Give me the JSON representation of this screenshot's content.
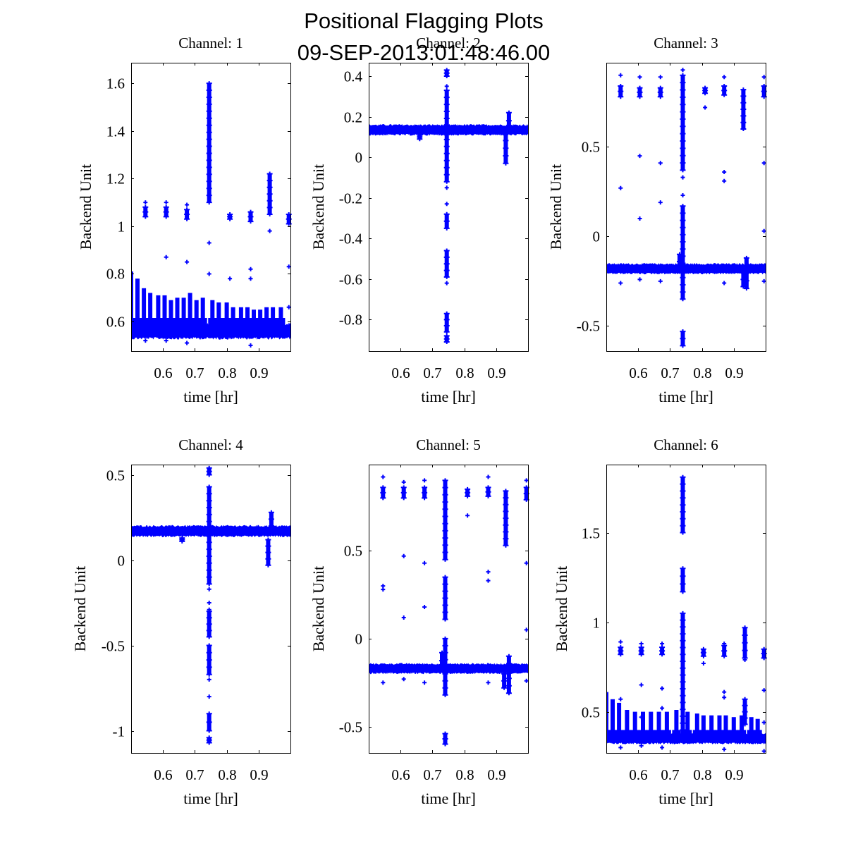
{
  "figure": {
    "title_line1": "Positional Flagging Plots",
    "title_line2": "09-SEP-2013:01:48:46.00"
  },
  "colors": {
    "marker": "#0000ff",
    "axes": "#000000",
    "background": "#ffffff"
  },
  "chart_data": [
    {
      "type": "scatter",
      "title": "Channel: 1",
      "xlabel": "time [hr]",
      "ylabel": "Backend Unit",
      "xlim": [
        0.5,
        1.0
      ],
      "ylim": [
        0.476,
        1.686
      ],
      "xticks": [
        0.6,
        0.7,
        0.8,
        0.9
      ],
      "xtick_labels": [
        "0.6",
        "0.7",
        "0.8",
        "0.9"
      ],
      "yticks": [
        0.6,
        0.8,
        1.0,
        1.2,
        1.4,
        1.6
      ],
      "ytick_labels": [
        "0.6",
        "0.8",
        "1",
        "1.2",
        "1.4",
        "1.6"
      ],
      "marker": "+",
      "baseline": {
        "center": 0.56,
        "halfwidth": 0.025
      },
      "comb_spikes": {
        "x": [
          0.5,
          0.52,
          0.54,
          0.56,
          0.585,
          0.605,
          0.625,
          0.645,
          0.665,
          0.685,
          0.705,
          0.725,
          0.755,
          0.775,
          0.8,
          0.82,
          0.845,
          0.865,
          0.885,
          0.905,
          0.925,
          0.945,
          0.97
        ],
        "top": [
          0.81,
          0.78,
          0.74,
          0.72,
          0.71,
          0.71,
          0.69,
          0.7,
          0.7,
          0.72,
          0.69,
          0.7,
          0.69,
          0.68,
          0.68,
          0.66,
          0.66,
          0.66,
          0.65,
          0.65,
          0.66,
          0.66,
          0.66
        ]
      },
      "clusters": [
        {
          "x": 0.545,
          "y": [
            1.04,
            1.08
          ]
        },
        {
          "x": 0.61,
          "y": [
            1.04,
            1.08
          ]
        },
        {
          "x": 0.675,
          "y": [
            1.03,
            1.07
          ]
        },
        {
          "x": 0.745,
          "y": [
            1.1,
            1.6
          ]
        },
        {
          "x": 0.81,
          "y": [
            1.03,
            1.05
          ]
        },
        {
          "x": 0.875,
          "y": [
            1.02,
            1.06
          ]
        },
        {
          "x": 0.935,
          "y": [
            1.05,
            1.22
          ]
        },
        {
          "x": 0.995,
          "y": [
            1.01,
            1.05
          ]
        }
      ],
      "outliers": [
        [
          0.545,
          1.1
        ],
        [
          0.61,
          1.1
        ],
        [
          0.61,
          0.87
        ],
        [
          0.675,
          0.85
        ],
        [
          0.675,
          1.09
        ],
        [
          0.745,
          0.93
        ],
        [
          0.745,
          0.8
        ],
        [
          0.81,
          0.78
        ],
        [
          0.875,
          0.82
        ],
        [
          0.875,
          0.78
        ],
        [
          0.935,
          0.98
        ],
        [
          0.995,
          0.83
        ],
        [
          0.995,
          0.66
        ],
        [
          0.545,
          0.52
        ],
        [
          0.61,
          0.52
        ],
        [
          0.675,
          0.51
        ],
        [
          0.875,
          0.5
        ]
      ]
    },
    {
      "type": "scatter",
      "title": "Channel: 2",
      "xlabel": "time [hr]",
      "ylabel": "Backend Unit",
      "xlim": [
        0.5,
        1.0
      ],
      "ylim": [
        -0.955,
        0.466
      ],
      "xticks": [
        0.6,
        0.7,
        0.8,
        0.9
      ],
      "xtick_labels": [
        "0.6",
        "0.7",
        "0.8",
        "0.9"
      ],
      "yticks": [
        -0.8,
        -0.6,
        -0.4,
        -0.2,
        0,
        0.2,
        0.4
      ],
      "ytick_labels": [
        "-0.8",
        "-0.6",
        "-0.4",
        "-0.2",
        "0",
        "0.2",
        "0.4"
      ],
      "marker": "+",
      "baseline": {
        "center": 0.135,
        "halfwidth": 0.02
      },
      "comb_spikes": {
        "x": [],
        "top": []
      },
      "clusters": [
        {
          "x": 0.745,
          "y": [
            -0.12,
            0.33
          ]
        },
        {
          "x": 0.745,
          "y": [
            0.4,
            0.43
          ]
        },
        {
          "x": 0.745,
          "y": [
            -0.35,
            -0.28
          ]
        },
        {
          "x": 0.745,
          "y": [
            -0.59,
            -0.46
          ]
        },
        {
          "x": 0.745,
          "y": [
            -0.86,
            -0.77
          ]
        },
        {
          "x": 0.745,
          "y": [
            -0.91,
            -0.88
          ]
        },
        {
          "x": 0.66,
          "y": [
            0.09,
            0.11
          ]
        },
        {
          "x": 0.94,
          "y": [
            0.14,
            0.22
          ]
        },
        {
          "x": 0.93,
          "y": [
            -0.03,
            0.12
          ]
        }
      ],
      "outliers": [
        [
          0.745,
          0.35
        ],
        [
          0.745,
          -0.15
        ],
        [
          0.745,
          -0.23
        ],
        [
          0.745,
          -0.62
        ]
      ]
    },
    {
      "type": "scatter",
      "title": "Channel: 3",
      "xlabel": "time [hr]",
      "ylabel": "Backend Unit",
      "xlim": [
        0.5,
        1.0
      ],
      "ylim": [
        -0.64,
        0.97
      ],
      "xticks": [
        0.6,
        0.7,
        0.8,
        0.9
      ],
      "xtick_labels": [
        "0.6",
        "0.7",
        "0.8",
        "0.9"
      ],
      "yticks": [
        -0.5,
        0,
        0.5
      ],
      "ytick_labels": [
        "-0.5",
        "0",
        "0.5"
      ],
      "marker": "+",
      "baseline": {
        "center": -0.18,
        "halfwidth": 0.022
      },
      "comb_spikes": {
        "x": [],
        "top": []
      },
      "clusters": [
        {
          "x": 0.545,
          "y": [
            0.78,
            0.84
          ]
        },
        {
          "x": 0.605,
          "y": [
            0.78,
            0.83
          ]
        },
        {
          "x": 0.67,
          "y": [
            0.78,
            0.83
          ]
        },
        {
          "x": 0.74,
          "y": [
            0.37,
            0.9
          ]
        },
        {
          "x": 0.74,
          "y": [
            -0.35,
            0.17
          ]
        },
        {
          "x": 0.74,
          "y": [
            -0.61,
            -0.53
          ]
        },
        {
          "x": 0.81,
          "y": [
            0.8,
            0.83
          ]
        },
        {
          "x": 0.87,
          "y": [
            0.79,
            0.84
          ]
        },
        {
          "x": 0.93,
          "y": [
            0.6,
            0.82
          ]
        },
        {
          "x": 0.995,
          "y": [
            0.78,
            0.84
          ]
        },
        {
          "x": 0.93,
          "y": [
            -0.28,
            -0.2
          ]
        },
        {
          "x": 0.94,
          "y": [
            -0.29,
            -0.12
          ]
        },
        {
          "x": 0.73,
          "y": [
            -0.18,
            -0.1
          ]
        }
      ],
      "outliers": [
        [
          0.545,
          0.9
        ],
        [
          0.545,
          0.27
        ],
        [
          0.605,
          0.89
        ],
        [
          0.605,
          0.45
        ],
        [
          0.605,
          0.1
        ],
        [
          0.67,
          0.89
        ],
        [
          0.67,
          0.41
        ],
        [
          0.67,
          0.19
        ],
        [
          0.74,
          0.93
        ],
        [
          0.74,
          0.33
        ],
        [
          0.74,
          0.23
        ],
        [
          0.81,
          0.72
        ],
        [
          0.87,
          0.89
        ],
        [
          0.87,
          0.36
        ],
        [
          0.87,
          0.31
        ],
        [
          0.995,
          0.89
        ],
        [
          0.995,
          0.41
        ],
        [
          0.995,
          0.03
        ],
        [
          0.545,
          -0.26
        ],
        [
          0.605,
          -0.24
        ],
        [
          0.67,
          -0.25
        ],
        [
          0.87,
          -0.26
        ],
        [
          0.995,
          -0.25
        ]
      ]
    },
    {
      "type": "scatter",
      "title": "Channel: 4",
      "xlabel": "time [hr]",
      "ylabel": "Backend Unit",
      "xlim": [
        0.5,
        1.0
      ],
      "ylim": [
        -1.13,
        0.56
      ],
      "xticks": [
        0.6,
        0.7,
        0.8,
        0.9
      ],
      "xtick_labels": [
        "0.6",
        "0.7",
        "0.8",
        "0.9"
      ],
      "yticks": [
        -1,
        -0.5,
        0,
        0.5
      ],
      "ytick_labels": [
        "-1",
        "-0.5",
        "0",
        "0.5"
      ],
      "marker": "+",
      "baseline": {
        "center": 0.17,
        "halfwidth": 0.025
      },
      "comb_spikes": {
        "x": [],
        "top": []
      },
      "clusters": [
        {
          "x": 0.745,
          "y": [
            -0.14,
            0.43
          ]
        },
        {
          "x": 0.745,
          "y": [
            0.5,
            0.54
          ]
        },
        {
          "x": 0.745,
          "y": [
            -0.45,
            -0.3
          ]
        },
        {
          "x": 0.745,
          "y": [
            -0.67,
            -0.5
          ]
        },
        {
          "x": 0.745,
          "y": [
            -1.0,
            -0.9
          ]
        },
        {
          "x": 0.745,
          "y": [
            -1.07,
            -1.04
          ]
        },
        {
          "x": 0.66,
          "y": [
            0.11,
            0.13
          ]
        },
        {
          "x": 0.94,
          "y": [
            0.16,
            0.28
          ]
        },
        {
          "x": 0.93,
          "y": [
            -0.03,
            0.12
          ]
        }
      ],
      "outliers": [
        [
          0.745,
          -0.17
        ],
        [
          0.745,
          -0.25
        ],
        [
          0.745,
          -0.29
        ],
        [
          0.745,
          -0.7
        ],
        [
          0.745,
          -0.8
        ]
      ]
    },
    {
      "type": "scatter",
      "title": "Channel: 5",
      "xlabel": "time [hr]",
      "ylabel": "Backend Unit",
      "xlim": [
        0.5,
        1.0
      ],
      "ylim": [
        -0.65,
        0.99
      ],
      "xticks": [
        0.6,
        0.7,
        0.8,
        0.9
      ],
      "xtick_labels": [
        "0.6",
        "0.7",
        "0.8",
        "0.9"
      ],
      "yticks": [
        -0.5,
        0,
        0.5
      ],
      "ytick_labels": [
        "-0.5",
        "0",
        "0.5"
      ],
      "marker": "+",
      "baseline": {
        "center": -0.17,
        "halfwidth": 0.022
      },
      "comb_spikes": {
        "x": [],
        "top": []
      },
      "clusters": [
        {
          "x": 0.545,
          "y": [
            0.8,
            0.86
          ]
        },
        {
          "x": 0.61,
          "y": [
            0.8,
            0.86
          ]
        },
        {
          "x": 0.675,
          "y": [
            0.8,
            0.86
          ]
        },
        {
          "x": 0.74,
          "y": [
            0.45,
            0.9
          ]
        },
        {
          "x": 0.74,
          "y": [
            0.11,
            0.35
          ]
        },
        {
          "x": 0.74,
          "y": [
            -0.32,
            0.0
          ]
        },
        {
          "x": 0.74,
          "y": [
            -0.6,
            -0.54
          ]
        },
        {
          "x": 0.81,
          "y": [
            0.81,
            0.85
          ]
        },
        {
          "x": 0.875,
          "y": [
            0.81,
            0.86
          ]
        },
        {
          "x": 0.93,
          "y": [
            0.53,
            0.84
          ]
        },
        {
          "x": 0.995,
          "y": [
            0.79,
            0.86
          ]
        },
        {
          "x": 0.925,
          "y": [
            -0.28,
            -0.2
          ]
        },
        {
          "x": 0.94,
          "y": [
            -0.31,
            -0.1
          ]
        },
        {
          "x": 0.73,
          "y": [
            -0.17,
            -0.08
          ]
        }
      ],
      "outliers": [
        [
          0.545,
          0.92
        ],
        [
          0.545,
          0.3
        ],
        [
          0.545,
          0.28
        ],
        [
          0.61,
          0.89
        ],
        [
          0.61,
          0.47
        ],
        [
          0.61,
          0.12
        ],
        [
          0.675,
          0.9
        ],
        [
          0.675,
          0.43
        ],
        [
          0.675,
          0.18
        ],
        [
          0.81,
          0.7
        ],
        [
          0.875,
          0.92
        ],
        [
          0.875,
          0.38
        ],
        [
          0.875,
          0.33
        ],
        [
          0.995,
          0.9
        ],
        [
          0.995,
          0.43
        ],
        [
          0.995,
          0.05
        ],
        [
          0.545,
          -0.25
        ],
        [
          0.61,
          -0.23
        ],
        [
          0.675,
          -0.25
        ],
        [
          0.875,
          -0.25
        ],
        [
          0.995,
          -0.24
        ]
      ]
    },
    {
      "type": "scatter",
      "title": "Channel: 6",
      "xlabel": "time [hr]",
      "ylabel": "Backend Unit",
      "xlim": [
        0.5,
        1.0
      ],
      "ylim": [
        0.27,
        1.88
      ],
      "xticks": [
        0.6,
        0.7,
        0.8,
        0.9
      ],
      "xtick_labels": [
        "0.6",
        "0.7",
        "0.8",
        "0.9"
      ],
      "yticks": [
        0.5,
        1.0,
        1.5
      ],
      "ytick_labels": [
        "0.5",
        "1",
        "1.5"
      ],
      "marker": "+",
      "baseline": {
        "center": 0.35,
        "halfwidth": 0.022
      },
      "comb_spikes": {
        "x": [
          0.5,
          0.52,
          0.54,
          0.565,
          0.59,
          0.615,
          0.64,
          0.665,
          0.69,
          0.72,
          0.755,
          0.785,
          0.805,
          0.83,
          0.855,
          0.875,
          0.9,
          0.925,
          0.955,
          0.975
        ],
        "top": [
          0.61,
          0.57,
          0.55,
          0.51,
          0.5,
          0.5,
          0.5,
          0.5,
          0.5,
          0.51,
          0.5,
          0.49,
          0.48,
          0.48,
          0.48,
          0.48,
          0.47,
          0.48,
          0.47,
          0.46
        ]
      },
      "clusters": [
        {
          "x": 0.545,
          "y": [
            0.82,
            0.86
          ]
        },
        {
          "x": 0.61,
          "y": [
            0.82,
            0.86
          ]
        },
        {
          "x": 0.675,
          "y": [
            0.82,
            0.86
          ]
        },
        {
          "x": 0.74,
          "y": [
            0.36,
            1.05
          ]
        },
        {
          "x": 0.74,
          "y": [
            1.17,
            1.3
          ]
        },
        {
          "x": 0.74,
          "y": [
            1.5,
            1.81
          ]
        },
        {
          "x": 0.805,
          "y": [
            0.81,
            0.85
          ]
        },
        {
          "x": 0.87,
          "y": [
            0.81,
            0.87
          ]
        },
        {
          "x": 0.935,
          "y": [
            0.8,
            0.97
          ]
        },
        {
          "x": 0.995,
          "y": [
            0.8,
            0.85
          ]
        },
        {
          "x": 0.935,
          "y": [
            0.43,
            0.57
          ]
        }
      ],
      "outliers": [
        [
          0.545,
          0.89
        ],
        [
          0.545,
          0.57
        ],
        [
          0.61,
          0.88
        ],
        [
          0.61,
          0.65
        ],
        [
          0.61,
          0.47
        ],
        [
          0.675,
          0.88
        ],
        [
          0.675,
          0.63
        ],
        [
          0.675,
          0.52
        ],
        [
          0.805,
          0.77
        ],
        [
          0.87,
          0.88
        ],
        [
          0.87,
          0.61
        ],
        [
          0.87,
          0.58
        ],
        [
          0.935,
          0.79
        ],
        [
          0.995,
          0.62
        ],
        [
          0.995,
          0.44
        ],
        [
          0.545,
          0.3
        ],
        [
          0.61,
          0.31
        ],
        [
          0.675,
          0.3
        ],
        [
          0.87,
          0.29
        ],
        [
          0.995,
          0.28
        ]
      ]
    }
  ]
}
